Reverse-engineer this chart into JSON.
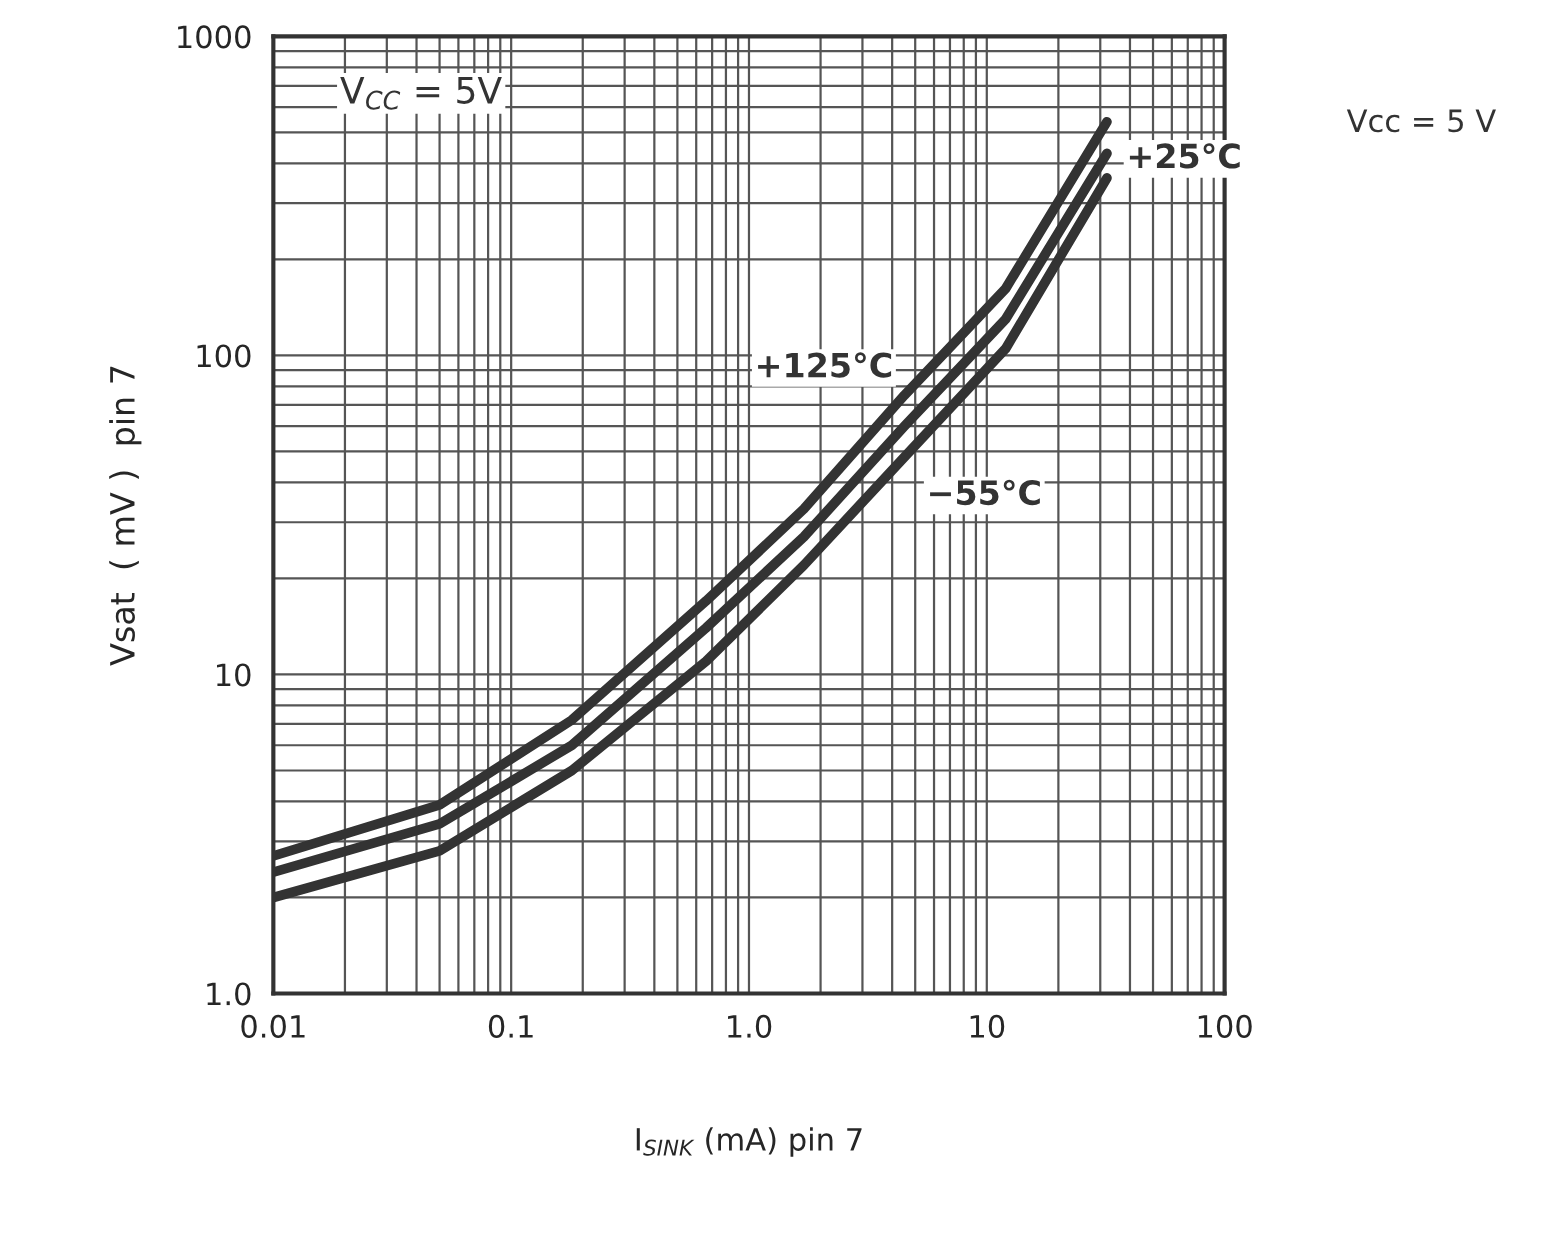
{
  "chart_data": {
    "type": "line",
    "xlabel": "I$_{SINK}$ (mA) pin 7",
    "ylabel": "Vsat  ( mV )  pin 7",
    "log": "xy",
    "grid": true,
    "legend": false,
    "x": [
      0.01,
      0.05,
      0.18,
      0.66,
      1.7,
      4.5,
      12,
      32
    ],
    "series": [
      {
        "name": "+125°C",
        "color": "#333333",
        "values": [
          2.7,
          3.9,
          7.2,
          17,
          33,
          75,
          162,
          540
        ]
      },
      {
        "name": "+25°C",
        "color": "#333333",
        "values": [
          2.4,
          3.4,
          6.0,
          14,
          27,
          60,
          130,
          430
        ]
      },
      {
        "name": "−55°C",
        "color": "#333333",
        "values": [
          2.0,
          2.8,
          5.0,
          11,
          22,
          48,
          105,
          360
        ]
      }
    ],
    "xlim": [
      0.01,
      100
    ],
    "xticks": [
      {
        "value": 0.01,
        "label": "0.01"
      },
      {
        "value": 0.1,
        "label": "0.1"
      },
      {
        "value": 1,
        "label": "1.0"
      },
      10,
      100
    ],
    "ylim": [
      1,
      1000
    ],
    "yticks": [
      {
        "value": 1,
        "label": "1.0"
      },
      10,
      100,
      1000
    ],
    "annotations": [
      "V$_{CC}$ = 5V",
      "Vcc = 5 V"
    ]
  }
}
